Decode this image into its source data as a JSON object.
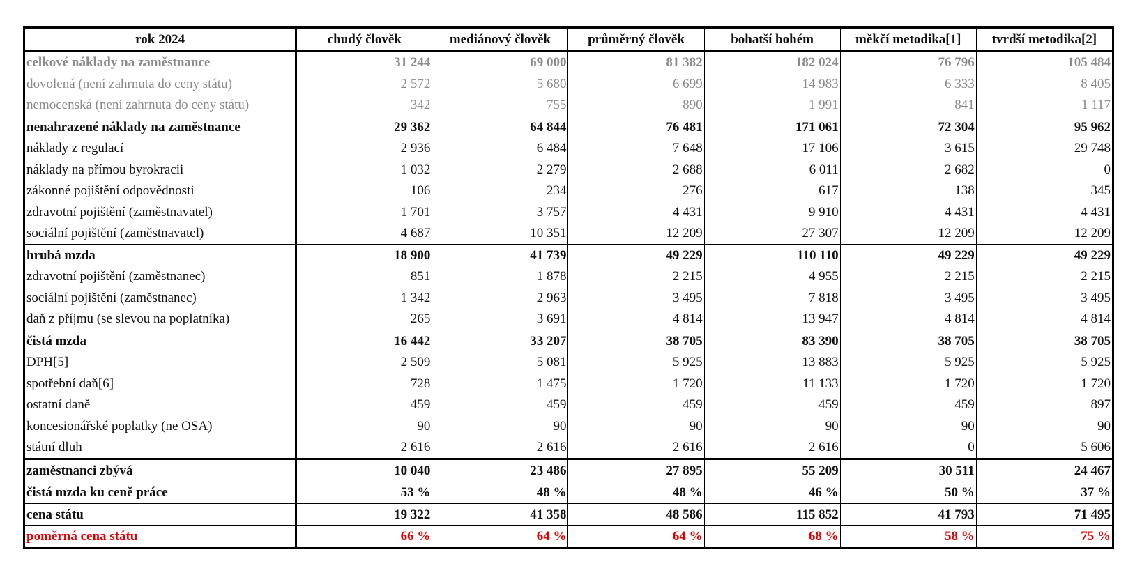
{
  "header": [
    "rok 2024",
    "chudý člověk",
    "mediánový člověk",
    "průměrný člověk",
    "bohatší bohém",
    "měkčí metodika[1]",
    "tvrdší metodika[2]"
  ],
  "rows": [
    {
      "label": "celkové náklady na zaměstnance",
      "values": [
        "31 244",
        "69 000",
        "81 382",
        "182 024",
        "76 796",
        "105 484"
      ],
      "style": "grey bold"
    },
    {
      "label": "dovolená (není zahrnuta do ceny státu)",
      "values": [
        "2 572",
        "5 680",
        "6 699",
        "14 983",
        "6 333",
        "8 405"
      ],
      "style": "grey"
    },
    {
      "label": "nemocenská (není zahrnuta do ceny státu)",
      "values": [
        "342",
        "755",
        "890",
        "1 991",
        "841",
        "1 117"
      ],
      "style": "grey"
    },
    {
      "label": "nenahrazené náklady na zaměstnance",
      "values": [
        "29 362",
        "64 844",
        "76 481",
        "171 061",
        "72 304",
        "95 962"
      ],
      "style": "bold"
    },
    {
      "label": "náklady z regulací",
      "values": [
        "2 936",
        "6 484",
        "7 648",
        "17 106",
        "3 615",
        "29 748"
      ],
      "style": ""
    },
    {
      "label": "náklady na přímou byrokracii",
      "values": [
        "1 032",
        "2 279",
        "2 688",
        "6 011",
        "2 682",
        "0"
      ],
      "style": ""
    },
    {
      "label": "zákonné pojištění odpovědnosti",
      "values": [
        "106",
        "234",
        "276",
        "617",
        "138",
        "345"
      ],
      "style": ""
    },
    {
      "label": "zdravotní pojištění (zaměstnavatel)",
      "values": [
        "1 701",
        "3 757",
        "4 431",
        "9 910",
        "4 431",
        "4 431"
      ],
      "style": ""
    },
    {
      "label": "sociální pojištění (zaměstnavatel)",
      "values": [
        "4 687",
        "10 351",
        "12 209",
        "27 307",
        "12 209",
        "12 209"
      ],
      "style": ""
    },
    {
      "label": "hrubá mzda",
      "values": [
        "18 900",
        "41 739",
        "49 229",
        "110 110",
        "49 229",
        "49 229"
      ],
      "style": "bold"
    },
    {
      "label": "zdravotní pojištění (zaměstnanec)",
      "values": [
        "851",
        "1 878",
        "2 215",
        "4 955",
        "2 215",
        "2 215"
      ],
      "style": ""
    },
    {
      "label": "sociální pojištění (zaměstnanec)",
      "values": [
        "1 342",
        "2 963",
        "3 495",
        "7 818",
        "3 495",
        "3 495"
      ],
      "style": ""
    },
    {
      "label": "daň z příjmu (se slevou na poplatníka)",
      "values": [
        "265",
        "3 691",
        "4 814",
        "13 947",
        "4 814",
        "4 814"
      ],
      "style": ""
    },
    {
      "label": "čistá mzda",
      "values": [
        "16 442",
        "33 207",
        "38 705",
        "83 390",
        "38 705",
        "38 705"
      ],
      "style": "bold"
    },
    {
      "label": "DPH[5]",
      "values": [
        "2 509",
        "5 081",
        "5 925",
        "13 883",
        "5 925",
        "5 925"
      ],
      "style": ""
    },
    {
      "label": "spotřební daň[6]",
      "values": [
        "728",
        "1 475",
        "1 720",
        "11 133",
        "1 720",
        "1 720"
      ],
      "style": ""
    },
    {
      "label": "ostatní daně",
      "values": [
        "459",
        "459",
        "459",
        "459",
        "459",
        "897"
      ],
      "style": ""
    },
    {
      "label": "koncesionářské poplatky (ne OSA)",
      "values": [
        "90",
        "90",
        "90",
        "90",
        "90",
        "90"
      ],
      "style": ""
    },
    {
      "label": "státní dluh",
      "values": [
        "2 616",
        "2 616",
        "2 616",
        "2 616",
        "0",
        "5 606"
      ],
      "style": ""
    },
    {
      "label": "zaměstnanci zbývá",
      "values": [
        "10 040",
        "23 486",
        "27 895",
        "55 209",
        "30 511",
        "24 467"
      ],
      "style": "bold thick"
    },
    {
      "label": "čistá mzda ku ceně práce",
      "values": [
        "53 %",
        "48 %",
        "48 %",
        "46 %",
        "50 %",
        "37 %"
      ],
      "style": "bold"
    },
    {
      "label": "cena státu",
      "values": [
        "19 322",
        "41 358",
        "48 586",
        "115 852",
        "41 793",
        "71 495"
      ],
      "style": "bold"
    },
    {
      "label": "poměrná cena státu",
      "values": [
        "66 %",
        "64 %",
        "64 %",
        "68 %",
        "58 %",
        "75 %"
      ],
      "style": "bold red last"
    }
  ]
}
